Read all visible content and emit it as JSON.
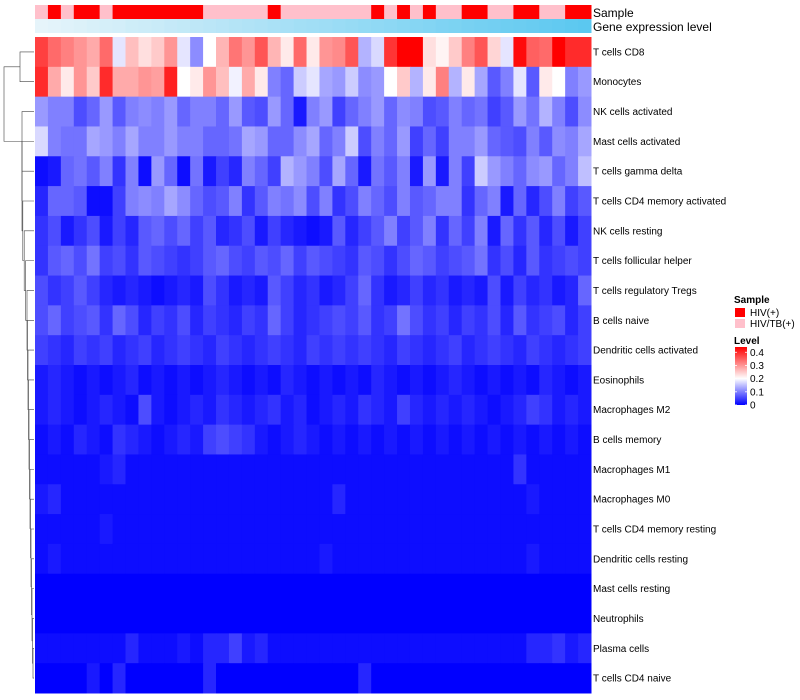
{
  "chart_data": {
    "type": "heatmap",
    "annotation_rows": [
      "Sample",
      "Gene expression level"
    ],
    "rows": [
      "T cells CD8",
      "Monocytes",
      "NK cells activated",
      "Mast cells activated",
      "T cells gamma delta",
      "T cells CD4 memory activated",
      "NK cells resting",
      "T cells follicular helper",
      "T cells regulatory  Tregs",
      "B cells naive",
      "Dendritic cells activated",
      "Eosinophils",
      "Macrophages M2",
      "B cells memory",
      "Macrophages M1",
      "Macrophages M0",
      "T cells CD4 memory resting",
      "Dendritic cells resting",
      "Mast cells resting",
      "Neutrophils",
      "Plasma cells",
      "T cells CD4 naive"
    ],
    "sample_groups": [
      1,
      0,
      1,
      0,
      0,
      1,
      0,
      0,
      0,
      0,
      0,
      0,
      0,
      1,
      1,
      1,
      1,
      1,
      0,
      1,
      1,
      1,
      1,
      1,
      1,
      1,
      0,
      1,
      0,
      1,
      0,
      1,
      1,
      0,
      0,
      1,
      1,
      0,
      0,
      1,
      1,
      0,
      0
    ],
    "expression_column_values": [
      0,
      0.02,
      0.05,
      0.07,
      0.1,
      0.12,
      0.14,
      0.17,
      0.19,
      0.21,
      0.24,
      0.26,
      0.29,
      0.31,
      0.33,
      0.36,
      0.38,
      0.4,
      0.43,
      0.45,
      0.48,
      0.5,
      0.52,
      0.55,
      0.57,
      0.6,
      0.62,
      0.64,
      0.67,
      0.69,
      0.71,
      0.74,
      0.76,
      0.79,
      0.81,
      0.83,
      0.86,
      0.88,
      0.9,
      0.93,
      0.95,
      0.98,
      1
    ],
    "values": [
      [
        0.38,
        0.34,
        0.32,
        0.3,
        0.28,
        0.34,
        0.18,
        0.26,
        0.23,
        0.25,
        0.3,
        0.18,
        0.11,
        0.2,
        0.27,
        0.33,
        0.3,
        0.36,
        0.27,
        0.22,
        0.34,
        0.22,
        0.3,
        0.31,
        0.36,
        0.14,
        0.17,
        0.39,
        0.44,
        0.44,
        0.23,
        0.21,
        0.25,
        0.32,
        0.36,
        0.24,
        0.18,
        0.43,
        0.35,
        0.34,
        0.45,
        0.4,
        0.4
      ],
      [
        0.4,
        0.28,
        0.22,
        0.3,
        0.25,
        0.4,
        0.28,
        0.28,
        0.3,
        0.29,
        0.41,
        0.2,
        0.22,
        0.3,
        0.26,
        0.19,
        0.28,
        0.22,
        0.1,
        0.08,
        0.16,
        0.18,
        0.13,
        0.12,
        0.16,
        0.11,
        0.12,
        0.2,
        0.25,
        0.14,
        0.22,
        0.32,
        0.14,
        0.22,
        0.13,
        0.07,
        0.1,
        0.18,
        0.07,
        0.22,
        0.2,
        0.1,
        0.12
      ],
      [
        0.12,
        0.1,
        0.1,
        0.06,
        0.08,
        0.12,
        0.07,
        0.1,
        0.11,
        0.1,
        0.12,
        0.08,
        0.1,
        0.1,
        0.08,
        0.12,
        0.07,
        0.06,
        0.12,
        0.08,
        0.02,
        0.1,
        0.12,
        0.05,
        0.08,
        0.1,
        0.12,
        0.08,
        0.11,
        0.1,
        0.06,
        0.07,
        0.1,
        0.08,
        0.09,
        0.05,
        0.07,
        0.12,
        0.09,
        0.14,
        0.1,
        0.06,
        0.11
      ],
      [
        0.17,
        0.1,
        0.09,
        0.09,
        0.13,
        0.12,
        0.1,
        0.13,
        0.1,
        0.1,
        0.12,
        0.1,
        0.1,
        0.08,
        0.08,
        0.09,
        0.13,
        0.12,
        0.08,
        0.08,
        0.11,
        0.13,
        0.08,
        0.1,
        0.16,
        0.06,
        0.1,
        0.08,
        0.12,
        0.05,
        0.08,
        0.05,
        0.1,
        0.1,
        0.12,
        0.08,
        0.07,
        0.06,
        0.1,
        0.07,
        0.11,
        0.1,
        0.13
      ],
      [
        0.01,
        0.02,
        0.08,
        0.09,
        0.07,
        0.1,
        0.04,
        0.1,
        0.01,
        0.12,
        0.08,
        0.01,
        0.09,
        0.02,
        0.05,
        0.03,
        0.1,
        0.08,
        0.05,
        0.14,
        0.12,
        0.1,
        0.06,
        0.13,
        0.08,
        0.02,
        0.09,
        0.07,
        0.1,
        0.02,
        0.12,
        0.02,
        0.1,
        0.05,
        0.16,
        0.12,
        0.1,
        0.08,
        0.11,
        0.12,
        0.08,
        0.1,
        0.15
      ],
      [
        0.03,
        0.08,
        0.08,
        0.07,
        0.01,
        0.01,
        0.05,
        0.1,
        0.11,
        0.1,
        0.13,
        0.11,
        0.08,
        0.06,
        0.07,
        0.1,
        0.04,
        0.07,
        0.1,
        0.09,
        0.11,
        0.06,
        0.1,
        0.04,
        0.06,
        0.1,
        0.08,
        0.06,
        0.1,
        0.07,
        0.08,
        0.1,
        0.1,
        0.04,
        0.08,
        0.1,
        0.02,
        0.08,
        0.03,
        0.06,
        0.1,
        0.05,
        0.07
      ],
      [
        0.04,
        0.06,
        0.02,
        0.04,
        0.06,
        0.02,
        0.05,
        0.03,
        0.07,
        0.08,
        0.06,
        0.08,
        0.05,
        0.07,
        0.03,
        0.04,
        0.06,
        0.02,
        0.05,
        0.03,
        0.02,
        0.01,
        0.02,
        0.07,
        0.03,
        0.05,
        0.07,
        0.1,
        0.05,
        0.07,
        0.1,
        0.04,
        0.08,
        0.05,
        0.1,
        0.02,
        0.08,
        0.04,
        0.07,
        0.03,
        0.06,
        0.02,
        0.05
      ],
      [
        0.04,
        0.07,
        0.08,
        0.06,
        0.09,
        0.05,
        0.06,
        0.04,
        0.07,
        0.06,
        0.05,
        0.04,
        0.05,
        0.07,
        0.08,
        0.06,
        0.05,
        0.07,
        0.06,
        0.08,
        0.05,
        0.07,
        0.06,
        0.05,
        0.04,
        0.07,
        0.06,
        0.04,
        0.06,
        0.08,
        0.07,
        0.05,
        0.06,
        0.07,
        0.09,
        0.04,
        0.06,
        0.03,
        0.07,
        0.04,
        0.05,
        0.06,
        0.05
      ],
      [
        0.06,
        0.04,
        0.05,
        0.07,
        0.05,
        0.03,
        0.02,
        0.03,
        0.02,
        0.01,
        0.02,
        0.03,
        0.02,
        0.06,
        0.04,
        0.02,
        0.03,
        0.02,
        0.07,
        0.05,
        0.03,
        0.04,
        0.02,
        0.03,
        0.05,
        0.08,
        0.04,
        0.02,
        0.03,
        0.05,
        0.03,
        0.04,
        0.02,
        0.03,
        0.02,
        0.06,
        0.02,
        0.05,
        0.03,
        0.04,
        0.02,
        0.03,
        0.08
      ],
      [
        0.06,
        0.08,
        0.05,
        0.06,
        0.07,
        0.04,
        0.08,
        0.06,
        0.03,
        0.05,
        0.04,
        0.06,
        0.03,
        0.05,
        0.04,
        0.03,
        0.05,
        0.04,
        0.08,
        0.05,
        0.03,
        0.04,
        0.05,
        0.06,
        0.05,
        0.07,
        0.04,
        0.05,
        0.09,
        0.06,
        0.04,
        0.05,
        0.03,
        0.05,
        0.04,
        0.06,
        0.03,
        0.07,
        0.04,
        0.05,
        0.06,
        0.03,
        0.05
      ],
      [
        0.05,
        0.04,
        0.03,
        0.05,
        0.04,
        0.05,
        0.03,
        0.04,
        0.05,
        0.03,
        0.04,
        0.05,
        0.04,
        0.03,
        0.05,
        0.04,
        0.03,
        0.04,
        0.05,
        0.04,
        0.03,
        0.05,
        0.04,
        0.05,
        0.04,
        0.05,
        0.04,
        0.03,
        0.05,
        0.04,
        0.03,
        0.04,
        0.05,
        0.03,
        0.04,
        0.05,
        0.04,
        0.03,
        0.05,
        0.04,
        0.03,
        0.04,
        0.05
      ],
      [
        0.02,
        0.03,
        0.02,
        0.01,
        0.02,
        0.01,
        0.02,
        0.03,
        0.01,
        0.02,
        0.01,
        0.02,
        0.01,
        0.02,
        0.03,
        0.02,
        0.01,
        0.02,
        0.01,
        0.03,
        0.02,
        0.01,
        0.02,
        0.01,
        0.02,
        0.01,
        0.03,
        0.02,
        0.01,
        0.02,
        0.01,
        0.02,
        0.03,
        0.02,
        0.01,
        0.02,
        0.01,
        0.02,
        0.01,
        0.03,
        0.02,
        0.01,
        0.02
      ],
      [
        0.02,
        0.03,
        0.02,
        0.01,
        0.02,
        0.03,
        0.02,
        0.01,
        0.06,
        0.02,
        0.01,
        0.02,
        0.03,
        0.02,
        0.04,
        0.03,
        0.02,
        0.03,
        0.04,
        0.02,
        0.03,
        0.01,
        0.02,
        0.03,
        0.02,
        0.04,
        0.03,
        0.02,
        0.05,
        0.03,
        0.02,
        0.03,
        0.02,
        0.03,
        0.02,
        0.01,
        0.02,
        0.03,
        0.05,
        0.04,
        0.02,
        0.03,
        0.02
      ],
      [
        0.01,
        0.02,
        0.01,
        0.03,
        0.02,
        0.01,
        0.04,
        0.03,
        0.02,
        0.01,
        0.02,
        0.03,
        0.02,
        0.05,
        0.06,
        0.05,
        0.04,
        0.02,
        0.01,
        0.02,
        0.03,
        0.02,
        0.01,
        0.02,
        0.01,
        0.02,
        0.01,
        0.02,
        0.01,
        0.02,
        0.01,
        0.02,
        0.01,
        0.02,
        0.01,
        0.02,
        0.01,
        0.02,
        0.01,
        0.02,
        0.01,
        0.02,
        0.01
      ],
      [
        0.01,
        0.01,
        0.01,
        0.01,
        0.01,
        0.02,
        0.03,
        0.01,
        0.01,
        0.01,
        0.01,
        0.01,
        0.01,
        0.01,
        0.01,
        0.01,
        0.01,
        0.01,
        0.01,
        0.01,
        0.01,
        0.01,
        0.01,
        0.01,
        0.01,
        0.01,
        0.01,
        0.01,
        0.01,
        0.01,
        0.01,
        0.01,
        0.01,
        0.01,
        0.01,
        0.01,
        0.01,
        0.04,
        0.01,
        0.01,
        0.01,
        0.01,
        0.01
      ],
      [
        0.02,
        0.03,
        0.01,
        0.01,
        0.01,
        0.01,
        0.01,
        0.01,
        0.01,
        0.01,
        0.01,
        0.01,
        0.01,
        0.01,
        0.01,
        0.01,
        0.01,
        0.01,
        0.01,
        0.01,
        0.01,
        0.01,
        0.01,
        0.03,
        0.01,
        0.01,
        0.01,
        0.01,
        0.01,
        0.01,
        0.01,
        0.01,
        0.01,
        0.01,
        0.01,
        0.01,
        0.01,
        0.01,
        0.02,
        0.01,
        0.01,
        0.01,
        0.01
      ],
      [
        0.01,
        0.01,
        0.01,
        0.01,
        0.01,
        0.02,
        0.01,
        0.01,
        0.01,
        0.01,
        0.01,
        0.01,
        0.01,
        0.01,
        0.01,
        0.01,
        0.01,
        0.01,
        0.01,
        0.01,
        0.01,
        0.01,
        0.01,
        0.01,
        0.01,
        0.01,
        0.01,
        0.01,
        0.01,
        0.01,
        0.01,
        0.01,
        0.01,
        0.01,
        0.01,
        0.01,
        0.01,
        0.01,
        0.01,
        0.01,
        0.01,
        0.01,
        0.01
      ],
      [
        0.01,
        0.02,
        0.01,
        0.01,
        0.01,
        0.01,
        0.01,
        0.01,
        0.01,
        0.01,
        0.01,
        0.01,
        0.01,
        0.01,
        0.01,
        0.01,
        0.01,
        0.01,
        0.01,
        0.01,
        0.01,
        0.01,
        0.02,
        0.01,
        0.01,
        0.01,
        0.01,
        0.01,
        0.01,
        0.01,
        0.01,
        0.01,
        0.01,
        0.01,
        0.01,
        0.01,
        0.01,
        0.01,
        0.02,
        0.01,
        0.01,
        0.01,
        0.01
      ],
      [
        0.0,
        0.0,
        0.0,
        0.0,
        0.0,
        0.0,
        0.0,
        0.0,
        0.0,
        0.0,
        0.0,
        0.0,
        0.0,
        0.0,
        0.0,
        0.0,
        0.0,
        0.0,
        0.0,
        0.0,
        0.0,
        0.0,
        0.0,
        0.0,
        0.0,
        0.0,
        0.0,
        0.0,
        0.0,
        0.0,
        0.0,
        0.0,
        0.0,
        0.0,
        0.0,
        0.0,
        0.0,
        0.0,
        0.0,
        0.0,
        0.0,
        0.0,
        0.0
      ],
      [
        0.0,
        0.0,
        0.0,
        0.0,
        0.0,
        0.0,
        0.0,
        0.0,
        0.0,
        0.0,
        0.0,
        0.0,
        0.0,
        0.0,
        0.0,
        0.0,
        0.0,
        0.0,
        0.0,
        0.0,
        0.0,
        0.0,
        0.0,
        0.0,
        0.0,
        0.0,
        0.0,
        0.0,
        0.0,
        0.0,
        0.0,
        0.0,
        0.0,
        0.0,
        0.0,
        0.0,
        0.0,
        0.0,
        0.0,
        0.0,
        0.0,
        0.0,
        0.0
      ],
      [
        0.01,
        0.01,
        0.01,
        0.01,
        0.01,
        0.01,
        0.01,
        0.03,
        0.01,
        0.01,
        0.01,
        0.02,
        0.01,
        0.03,
        0.03,
        0.05,
        0.02,
        0.03,
        0.01,
        0.01,
        0.01,
        0.01,
        0.01,
        0.01,
        0.01,
        0.01,
        0.01,
        0.01,
        0.01,
        0.01,
        0.01,
        0.01,
        0.01,
        0.01,
        0.01,
        0.01,
        0.01,
        0.01,
        0.03,
        0.03,
        0.04,
        0.02,
        0.03
      ],
      [
        0.0,
        0.0,
        0.0,
        0.0,
        0.02,
        0.0,
        0.03,
        0.0,
        0.0,
        0.0,
        0.0,
        0.0,
        0.0,
        0.03,
        0.0,
        0.0,
        0.0,
        0.0,
        0.0,
        0.0,
        0.0,
        0.0,
        0.0,
        0.0,
        0.0,
        0.03,
        0.0,
        0.0,
        0.0,
        0.0,
        0.0,
        0.0,
        0.0,
        0.0,
        0.0,
        0.0,
        0.0,
        0.0,
        0.0,
        0.0,
        0.0,
        0.0,
        0.0
      ]
    ],
    "legend": {
      "sample_title": "Sample",
      "sample_items": [
        {
          "label": "HIV(+)",
          "color": "#ff0000"
        },
        {
          "label": "HIV/TB(+)",
          "color": "#ffc0cb"
        }
      ],
      "level_title": "Level",
      "level_ticks": [
        "0.4",
        "0.3",
        "0.2",
        "0.1",
        "0"
      ],
      "level_tick_values": [
        0.4,
        0.3,
        0.2,
        0.1,
        0
      ],
      "level_range": [
        0,
        0.44
      ]
    },
    "colors": {
      "low": "#0000ff",
      "mid": "#ffffff",
      "high": "#ff0000",
      "mid_value": 0.2,
      "expr_low": "#e6f4fa",
      "expr_high": "#5bc8f0"
    }
  }
}
